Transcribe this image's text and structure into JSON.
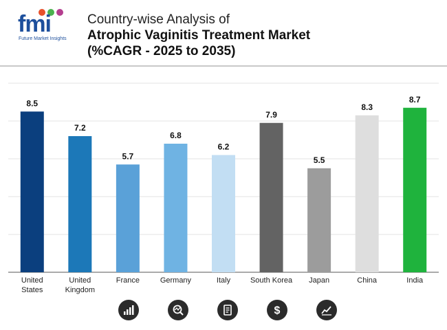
{
  "header": {
    "logo_text": "fmi",
    "logo_subtitle": "Future Market Insights",
    "title_line1": "Country-wise Analysis of",
    "title_line2": "Atrophic Vaginitis Treatment Market",
    "title_line3": "(%CAGR - 2025 to 2035)"
  },
  "chart_data": {
    "type": "bar",
    "title": "Country-wise Analysis of Atrophic Vaginitis Treatment Market (%CAGR - 2025 to 2035)",
    "xlabel": "",
    "ylabel": "",
    "categories": [
      [
        "United",
        "States"
      ],
      [
        "United",
        "Kingdom"
      ],
      [
        "France"
      ],
      [
        "Germany"
      ],
      [
        "Italy"
      ],
      [
        "South Korea"
      ],
      [
        "Japan"
      ],
      [
        "China"
      ],
      [
        "India"
      ]
    ],
    "values": [
      8.5,
      7.2,
      5.7,
      6.8,
      6.2,
      7.9,
      5.5,
      8.3,
      8.7
    ],
    "value_labels": [
      "8.5",
      "7.2",
      "5.7",
      "6.8",
      "6.2",
      "7.9",
      "5.5",
      "8.3",
      "8.7"
    ],
    "colors": [
      "#0b3f7e",
      "#1c78b8",
      "#5aa1d8",
      "#6fb3e3",
      "#c2def3",
      "#636363",
      "#9c9c9c",
      "#dedede",
      "#1fb33d"
    ],
    "ylim": [
      0,
      10
    ],
    "grid": true
  },
  "footer_icons": [
    "bar-chart-icon",
    "analysis-icon",
    "document-icon",
    "dollar-icon",
    "trend-icon"
  ]
}
